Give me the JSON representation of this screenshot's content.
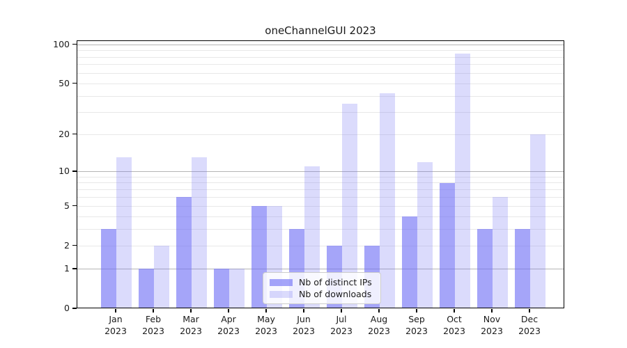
{
  "chart_data": {
    "type": "bar",
    "title": "oneChannelGUI 2023",
    "categories": [
      "Jan",
      "Feb",
      "Mar",
      "Apr",
      "May",
      "Jun",
      "Jul",
      "Aug",
      "Sep",
      "Oct",
      "Nov",
      "Dec"
    ],
    "year": "2023",
    "series": [
      {
        "name": "Nb of distinct IPs",
        "color": "rgba(110,110,245,0.62)",
        "values": [
          3,
          1,
          6,
          1,
          5,
          3,
          2,
          2,
          4,
          8,
          3,
          3
        ]
      },
      {
        "name": "Nb of downloads",
        "color": "rgba(110,110,245,0.25)",
        "values": [
          13,
          2,
          13,
          1,
          5,
          11,
          35,
          42,
          12,
          85,
          6,
          20
        ]
      }
    ],
    "y_scale": "log1p",
    "y_ticks": [
      0,
      1,
      2,
      5,
      10,
      20,
      50,
      100
    ],
    "ylim": [
      0,
      105
    ],
    "grid": "horizontal, minor lines at 2-9 and 20-90, darker lines at 1/10/100",
    "legend_position": "inside-bottom-center",
    "axis_color": "#000000",
    "major_grid_color": "#b5b5b5",
    "minor_grid_color": "#e8e8e8",
    "xlabel": "",
    "ylabel": ""
  }
}
